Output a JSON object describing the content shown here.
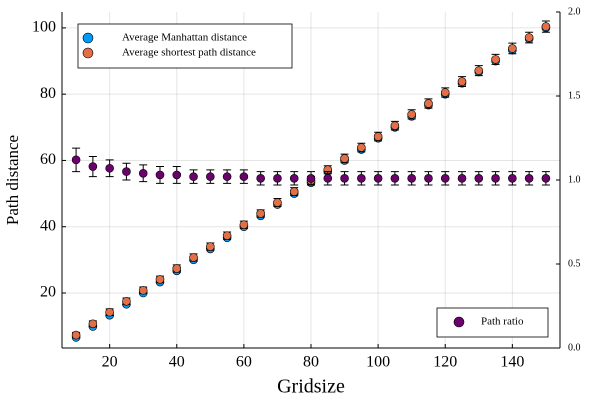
{
  "chart_data": {
    "type": "scatter",
    "x_label": "Gridsize",
    "y_label": "Path distance",
    "x": [
      10,
      15,
      20,
      25,
      30,
      35,
      40,
      45,
      50,
      55,
      60,
      65,
      70,
      75,
      80,
      85,
      90,
      95,
      100,
      105,
      110,
      115,
      120,
      125,
      130,
      135,
      140,
      145,
      150
    ],
    "xlim": [
      5.8,
      154.2
    ],
    "xticks": [
      20,
      40,
      60,
      80,
      100,
      120,
      140
    ],
    "ylim": [
      3.4,
      104.8
    ],
    "yticks": [
      20,
      40,
      60,
      80,
      100
    ],
    "y2lim": [
      0,
      2
    ],
    "y2ticks": [
      {
        "value": 0,
        "label": "0.0"
      },
      {
        "value": 0.5,
        "label": "0.5"
      },
      {
        "value": 1,
        "label": "1.0"
      },
      {
        "value": 1.5,
        "label": "1.5"
      },
      {
        "value": 2,
        "label": "2.0"
      }
    ],
    "grid": true,
    "legend": "top-left",
    "y2_legend": "bottom-right",
    "series": [
      {
        "name": "Average Manhattan distance",
        "color": "#009af9",
        "values": [
          6.6,
          9.9,
          13.3,
          16.6,
          20.0,
          23.3,
          26.7,
          30.0,
          33.3,
          36.7,
          40.0,
          43.3,
          46.7,
          50.0,
          53.3,
          56.7,
          60.0,
          63.3,
          66.7,
          70.0,
          73.3,
          76.7,
          80.0,
          83.3,
          86.7,
          90.0,
          93.3,
          96.7,
          100.0
        ]
      },
      {
        "name": "Average shortest path distance",
        "color": "#e26f46",
        "values": [
          7.3,
          10.7,
          14.2,
          17.5,
          20.8,
          24.1,
          27.4,
          30.7,
          34.0,
          37.3,
          40.6,
          44.0,
          47.3,
          50.6,
          53.9,
          57.2,
          60.6,
          63.9,
          67.2,
          70.5,
          73.9,
          77.2,
          80.5,
          83.8,
          87.1,
          90.5,
          93.8,
          97.1,
          100.4
        ],
        "errors": [
          0.8,
          0.9,
          1.0,
          1.0,
          1.0,
          1.0,
          1.1,
          1.1,
          1.1,
          1.1,
          1.1,
          1.1,
          1.2,
          1.2,
          1.2,
          1.2,
          1.3,
          1.3,
          1.3,
          1.3,
          1.4,
          1.4,
          1.4,
          1.5,
          1.5,
          1.5,
          1.6,
          1.6,
          1.7
        ]
      },
      {
        "name": "Path ratio",
        "color": "#6c006c",
        "axis": "y2",
        "values": [
          1.12,
          1.08,
          1.07,
          1.05,
          1.04,
          1.03,
          1.03,
          1.02,
          1.02,
          1.02,
          1.02,
          1.01,
          1.01,
          1.01,
          1.01,
          1.01,
          1.01,
          1.01,
          1.01,
          1.01,
          1.01,
          1.01,
          1.01,
          1.01,
          1.01,
          1.01,
          1.01,
          1.01,
          1.01
        ],
        "errors": [
          0.07,
          0.06,
          0.05,
          0.05,
          0.05,
          0.05,
          0.05,
          0.04,
          0.04,
          0.04,
          0.04,
          0.04,
          0.04,
          0.04,
          0.04,
          0.04,
          0.04,
          0.04,
          0.04,
          0.04,
          0.04,
          0.04,
          0.04,
          0.04,
          0.04,
          0.04,
          0.04,
          0.04,
          0.04
        ]
      }
    ]
  }
}
